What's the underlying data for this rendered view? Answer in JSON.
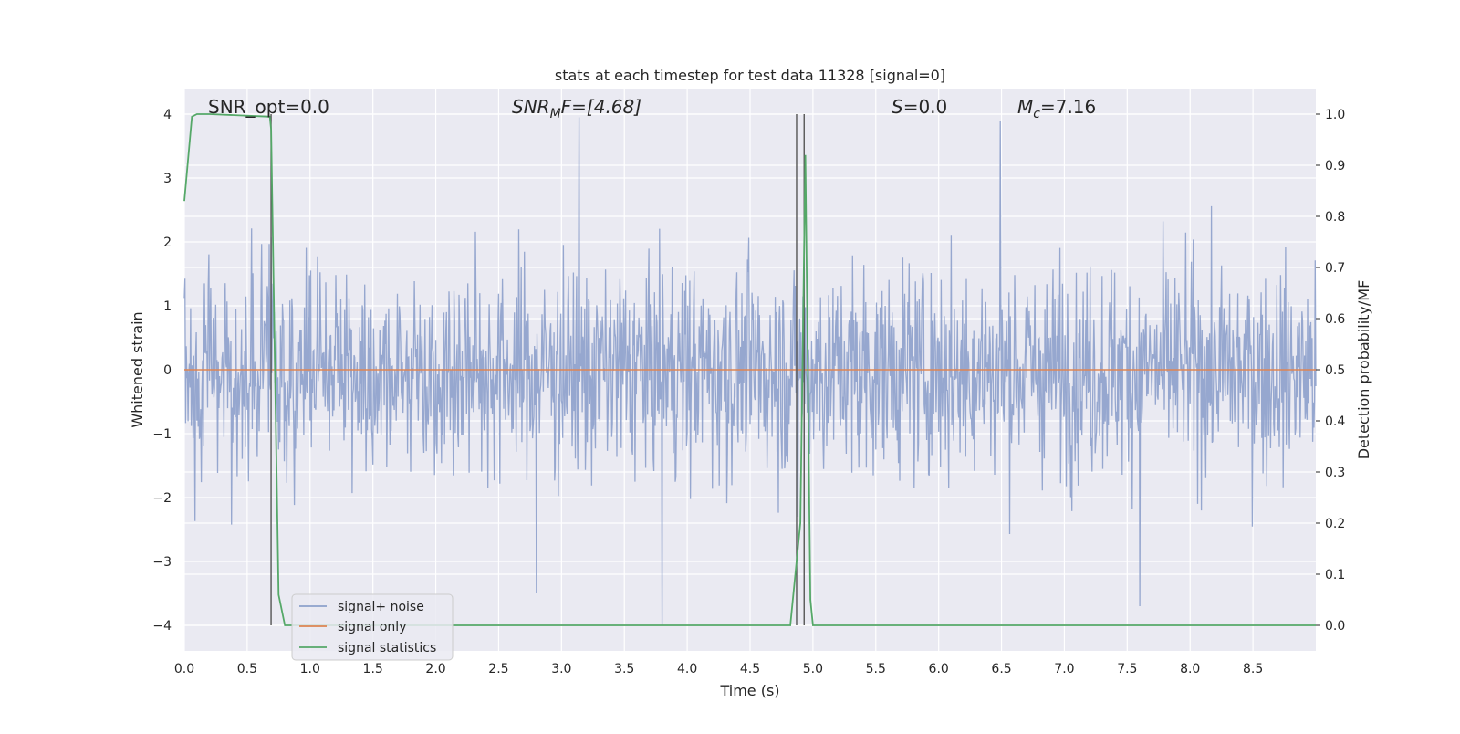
{
  "chart_data": {
    "type": "line",
    "title": "stats at each timestep for test data 11328 [signal=0]",
    "xlabel": "Time (s)",
    "ylabel_left": "Whitened strain",
    "ylabel_right": "Detection probability/MF",
    "xlim": [
      0.0,
      9.0
    ],
    "ylim_left": [
      -4.4,
      4.4
    ],
    "ylim_right": [
      -0.05,
      1.05
    ],
    "xticks": [
      "0.0",
      "0.5",
      "1.0",
      "1.5",
      "2.0",
      "2.5",
      "3.0",
      "3.5",
      "4.0",
      "4.5",
      "5.0",
      "5.5",
      "6.0",
      "6.5",
      "7.0",
      "7.5",
      "8.0",
      "8.5"
    ],
    "yticks_left": [
      "4",
      "3",
      "2",
      "1",
      "0",
      "−1",
      "−2",
      "−3",
      "−4"
    ],
    "yticks_right": [
      "1.0",
      "0.9",
      "0.8",
      "0.7",
      "0.6",
      "0.5",
      "0.4",
      "0.3",
      "0.2",
      "0.1",
      "0.0"
    ],
    "grid": true,
    "legend_position": "lower-left",
    "annotations": {
      "snr_opt": "SNR_opt=0.0",
      "snr_mf_name": "SNR",
      "snr_mf_sub": "M",
      "snr_mf_rest": "F=[4.68]",
      "s_name": "S",
      "s_rest": "=0.0",
      "mc_name": "M",
      "mc_sub": "c",
      "mc_rest": "=7.16"
    },
    "series": [
      {
        "name": "signal+ noise",
        "color": "#8da0cb",
        "description_kind": "noise",
        "amplitude_envelope": 1.5,
        "peaks": [
          [
            3.14,
            3.95
          ],
          [
            6.49,
            3.9
          ],
          [
            3.8,
            -4.0
          ],
          [
            7.6,
            -3.7
          ],
          [
            2.8,
            -3.5
          ],
          [
            4.88,
            -2.3
          ]
        ]
      },
      {
        "name": "signal only",
        "color": "#dd8452",
        "x": [
          0.0,
          9.0
        ],
        "y": [
          0.0,
          0.0
        ]
      },
      {
        "name": "signal statistics",
        "color": "#55a868",
        "axis": "right",
        "x": [
          0.0,
          0.06,
          0.1,
          0.2,
          0.68,
          0.69,
          0.75,
          0.8,
          4.82,
          4.9,
          4.94,
          4.98,
          5.0,
          9.0
        ],
        "y": [
          0.83,
          0.995,
          1.0,
          1.0,
          0.995,
          0.97,
          0.06,
          0.0,
          0.0,
          0.2,
          0.92,
          0.05,
          0.0,
          0.0
        ]
      }
    ],
    "vlines": [
      {
        "x": 0.69,
        "y": [
          0.0,
          1.0
        ]
      },
      {
        "x": 4.87,
        "y": [
          0.0,
          1.0
        ]
      },
      {
        "x": 4.93,
        "y": [
          0.0,
          1.0
        ]
      }
    ]
  }
}
